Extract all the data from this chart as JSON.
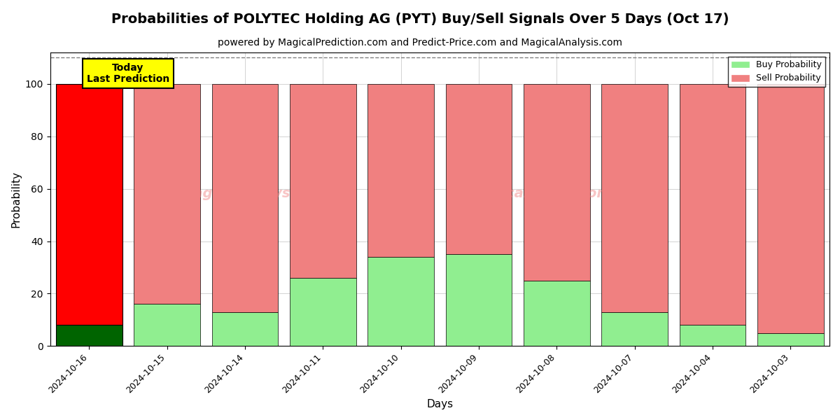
{
  "title": "Probabilities of POLYTEC Holding AG (PYT) Buy/Sell Signals Over 5 Days (Oct 17)",
  "subtitle": "powered by MagicalPrediction.com and Predict-Price.com and MagicalAnalysis.com",
  "xlabel": "Days",
  "ylabel": "Probability",
  "categories": [
    "2024-10-16",
    "2024-10-15",
    "2024-10-14",
    "2024-10-11",
    "2024-10-10",
    "2024-10-09",
    "2024-10-08",
    "2024-10-07",
    "2024-10-04",
    "2024-10-03"
  ],
  "buy_values": [
    8,
    16,
    13,
    26,
    34,
    35,
    25,
    13,
    8,
    5
  ],
  "sell_values": [
    92,
    84,
    87,
    74,
    66,
    65,
    75,
    87,
    92,
    95
  ],
  "today_buy_color": "#006400",
  "today_sell_color": "#ff0000",
  "buy_color": "#90EE90",
  "sell_color": "#F08080",
  "today_annotation_bg": "#ffff00",
  "today_annotation_text": "Today\nLast Prediction",
  "legend_buy_label": "Buy Probability",
  "legend_sell_label": "Sell Probability",
  "ylim": [
    0,
    112
  ],
  "dashed_line_y": 110,
  "background_color": "#ffffff",
  "watermark_color": "#F08080",
  "title_fontsize": 14,
  "subtitle_fontsize": 10,
  "figsize": [
    12,
    6
  ],
  "dpi": 100
}
